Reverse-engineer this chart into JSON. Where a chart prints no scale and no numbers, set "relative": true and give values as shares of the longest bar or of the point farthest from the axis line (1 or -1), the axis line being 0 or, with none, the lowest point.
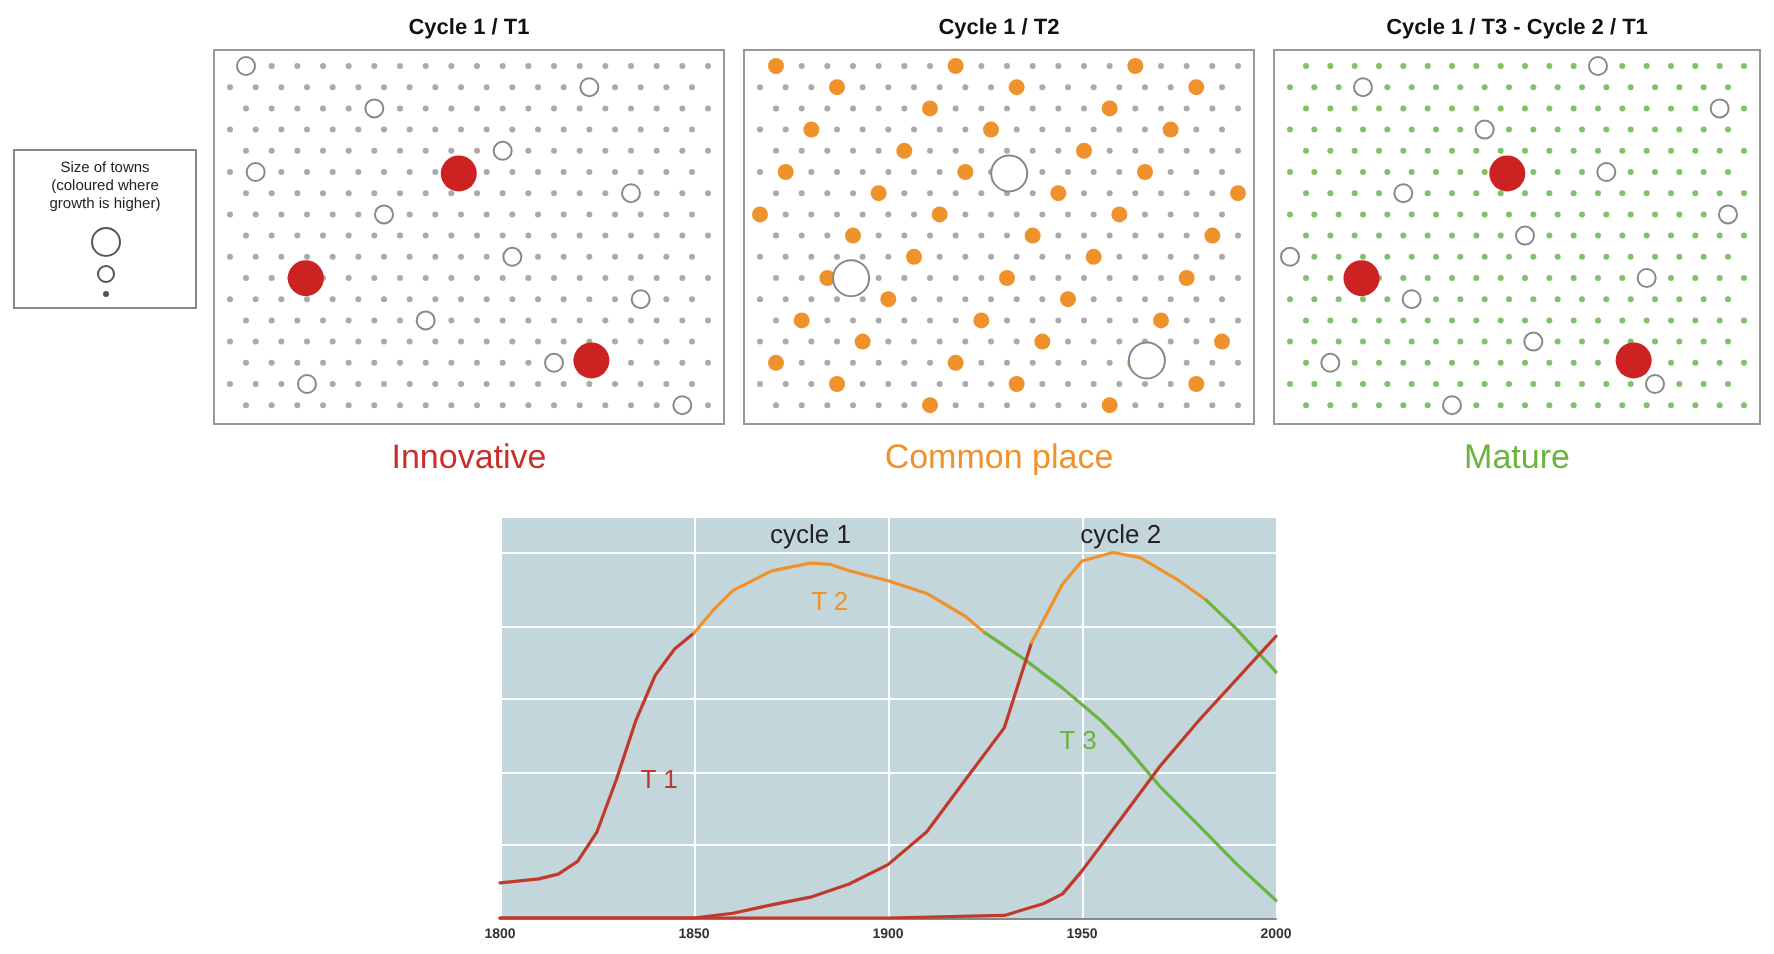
{
  "chart_data": [
    {
      "type": "other",
      "annotations": [
        "Size of towns\n(coloured where\ngrowth is higher)",
        "Cycle 1 / T1",
        "Cycle 1 / T2",
        "Cycle 1 / T3 - Cycle 2 / T1",
        "Innovative",
        "Common place",
        "Mature"
      ]
    },
    {
      "type": "line",
      "relative": true,
      "xlim": [
        1800,
        2000
      ],
      "xticks": [
        1800,
        1850,
        1900,
        1950,
        2000
      ],
      "grid": true,
      "marker": "none",
      "line_style": "solid",
      "series": [
        {
          "name": "T 1",
          "color": "#c0392b",
          "x": [
            1800,
            1810,
            1815,
            1820,
            1825,
            1830,
            1835,
            1840,
            1845,
            1850
          ],
          "values": [
            0.096,
            0.107,
            0.12,
            0.155,
            0.236,
            0.379,
            0.54,
            0.664,
            0.736,
            0.78
          ]
        },
        {
          "name": "T 2",
          "color": "#f0922b",
          "x": [
            1850,
            1855,
            1860,
            1870,
            1880,
            1885,
            1890,
            1900,
            1910,
            1920,
            1925
          ],
          "values": [
            0.78,
            0.843,
            0.896,
            0.95,
            0.971,
            0.968,
            0.95,
            0.923,
            0.888,
            0.825,
            0.78
          ]
        },
        {
          "name": "T 3",
          "color": "#6cb33f",
          "x": [
            1925,
            1935,
            1945,
            1955,
            1960,
            1970,
            1980,
            1990,
            2000
          ],
          "values": [
            0.78,
            0.709,
            0.629,
            0.539,
            0.486,
            0.361,
            0.254,
            0.146,
            0.048
          ]
        },
        {
          "color": "#c0392b",
          "x": [
            1800,
            1850,
            1860,
            1870,
            1880,
            1890,
            1900,
            1910,
            1920,
            1930,
            1937
          ],
          "values": [
            0,
            0,
            0.013,
            0.036,
            0.057,
            0.093,
            0.146,
            0.236,
            0.379,
            0.521,
            0.754
          ]
        },
        {
          "color": "#f0922b",
          "x": [
            1937,
            1945,
            1950,
            1958,
            1965,
            1975,
            1982
          ],
          "values": [
            0.754,
            0.914,
            0.977,
            1,
            0.986,
            0.923,
            0.87
          ]
        },
        {
          "color": "#6cb33f",
          "x": [
            1982,
            1990,
            2000
          ],
          "values": [
            0.87,
            0.789,
            0.673
          ]
        },
        {
          "color": "#c0392b",
          "x": [
            1800,
            1900,
            1930,
            1940,
            1945,
            1950,
            1960,
            1970,
            1980,
            1990,
            2000
          ],
          "values": [
            0,
            0,
            0.007,
            0.039,
            0.066,
            0.129,
            0.271,
            0.414,
            0.539,
            0.655,
            0.771
          ]
        }
      ],
      "annotations": [
        "cycle 1",
        "cycle 2"
      ]
    }
  ]
}
